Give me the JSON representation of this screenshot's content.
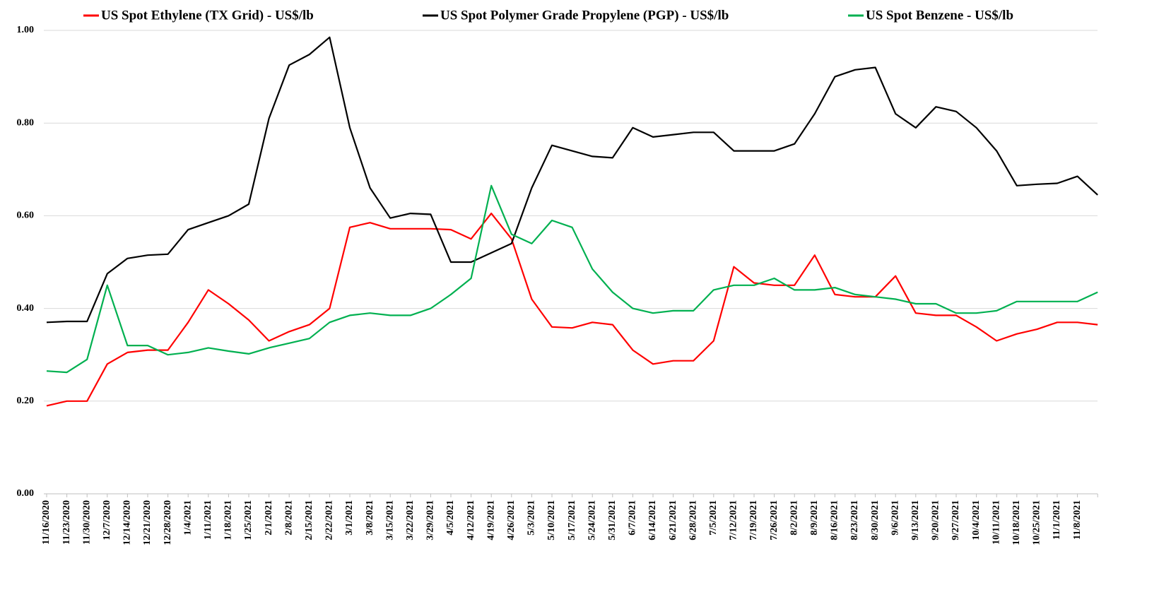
{
  "chart_data": {
    "type": "line",
    "categories": [
      "11/16/2020",
      "11/23/2020",
      "11/30/2020",
      "12/7/2020",
      "12/14/2020",
      "12/21/2020",
      "12/28/2020",
      "1/4/2021",
      "1/11/2021",
      "1/18/2021",
      "1/25/2021",
      "2/1/2021",
      "2/8/2021",
      "2/15/2021",
      "2/22/2021",
      "3/1/2021",
      "3/8/2021",
      "3/15/2021",
      "3/22/2021",
      "3/29/2021",
      "4/5/2021",
      "4/12/2021",
      "4/19/2021",
      "4/26/2021",
      "5/3/2021",
      "5/10/2021",
      "5/17/2021",
      "5/24/2021",
      "5/31/2021",
      "6/7/2021",
      "6/14/2021",
      "6/21/2021",
      "6/28/2021",
      "7/5/2021",
      "7/12/2021",
      "7/19/2021",
      "7/26/2021",
      "8/2/2021",
      "8/9/2021",
      "8/16/2021",
      "8/23/2021",
      "8/30/2021",
      "9/6/2021",
      "9/13/2021",
      "9/20/2021",
      "9/27/2021",
      "10/4/2021",
      "10/11/2021",
      "10/18/2021",
      "10/25/2021",
      "11/1/2021",
      "11/8/2021",
      null
    ],
    "series": [
      {
        "name": "US Spot Ethylene (TX Grid) - US$/lb",
        "color": "#ff0000",
        "values": [
          0.19,
          0.2,
          0.2,
          0.28,
          0.305,
          0.31,
          0.31,
          0.37,
          0.44,
          0.41,
          0.375,
          0.33,
          0.35,
          0.365,
          0.4,
          0.575,
          0.585,
          0.572,
          0.572,
          0.572,
          0.57,
          0.55,
          0.605,
          0.55,
          0.42,
          0.36,
          0.358,
          0.37,
          0.365,
          0.31,
          0.28,
          0.287,
          0.287,
          0.33,
          0.49,
          0.455,
          0.45,
          0.45,
          0.515,
          0.43,
          0.425,
          0.425,
          0.47,
          0.39,
          0.385,
          0.385,
          0.36,
          0.33,
          0.345,
          0.355,
          0.37,
          0.37,
          0.365
        ]
      },
      {
        "name": "US Spot Polymer Grade Propylene (PGP) - US$/lb",
        "color": "#000000",
        "values": [
          0.37,
          0.372,
          0.372,
          0.475,
          0.508,
          0.515,
          0.517,
          0.57,
          0.585,
          0.6,
          0.625,
          0.81,
          0.925,
          0.948,
          0.985,
          0.79,
          0.66,
          0.595,
          0.605,
          0.603,
          0.5,
          0.5,
          0.52,
          0.54,
          0.66,
          0.752,
          0.74,
          0.728,
          0.725,
          0.79,
          0.77,
          0.775,
          0.78,
          0.78,
          0.74,
          0.74,
          0.74,
          0.755,
          0.82,
          0.9,
          0.915,
          0.92,
          0.82,
          0.79,
          0.835,
          0.825,
          0.79,
          0.74,
          0.665,
          0.668,
          0.67,
          0.685,
          0.645
        ]
      },
      {
        "name": "US Spot Benzene - US$/lb",
        "color": "#00b050",
        "values": [
          0.265,
          0.262,
          0.29,
          0.45,
          0.32,
          0.32,
          0.3,
          0.305,
          0.315,
          0.308,
          0.302,
          0.315,
          0.325,
          0.335,
          0.37,
          0.385,
          0.39,
          0.385,
          0.385,
          0.4,
          0.43,
          0.465,
          0.665,
          0.56,
          0.54,
          0.59,
          0.575,
          0.485,
          0.435,
          0.4,
          0.39,
          0.395,
          0.395,
          0.44,
          0.45,
          0.45,
          0.465,
          0.44,
          0.44,
          0.445,
          0.43,
          0.425,
          0.42,
          0.41,
          0.41,
          0.39,
          0.39,
          0.395,
          0.415,
          0.415,
          0.415,
          0.415,
          0.435
        ]
      }
    ],
    "ylim": [
      0,
      1
    ],
    "yticks": [
      {
        "value": 0,
        "label": "0.00"
      },
      {
        "value": 0.2,
        "label": "0.20"
      },
      {
        "value": 0.4,
        "label": "0.40"
      },
      {
        "value": 0.6,
        "label": "0.60"
      },
      {
        "value": 0.8,
        "label": "0.80"
      },
      {
        "value": 1,
        "label": "1.00"
      }
    ],
    "grid": true,
    "legend": "top"
  }
}
